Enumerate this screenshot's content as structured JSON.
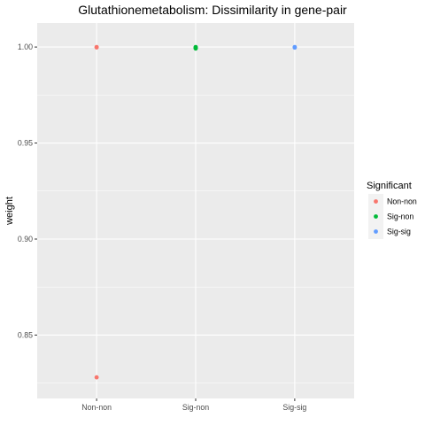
{
  "chart_data": {
    "type": "scatter",
    "title": "Glutathionemetabolism: Dissimilarity in gene-pair",
    "xlabel": "",
    "ylabel": "weight",
    "categories": [
      "Non-non",
      "Sig-non",
      "Sig-sig"
    ],
    "ylim": [
      0.817,
      1.0125
    ],
    "yticks": [
      "0.85",
      "0.90",
      "0.95",
      "1.00"
    ],
    "ytick_values": [
      0.85,
      0.9,
      0.95,
      1.0
    ],
    "grid": true,
    "legend": {
      "title": "Significant",
      "placement": "right"
    },
    "series": [
      {
        "name": "Non-non",
        "color": "#F8766D",
        "points": [
          {
            "x": "Non-non",
            "y": 1.0
          },
          {
            "x": "Non-non",
            "y": 0.9998
          },
          {
            "x": "Non-non",
            "y": 0.828
          }
        ]
      },
      {
        "name": "Sig-non",
        "color": "#00BA38",
        "points": [
          {
            "x": "Sig-non",
            "y": 1.0
          },
          {
            "x": "Sig-non",
            "y": 0.9995
          },
          {
            "x": "Sig-non",
            "y": 0.9992
          },
          {
            "x": "Sig-non",
            "y": 0.9998
          }
        ]
      },
      {
        "name": "Sig-sig",
        "color": "#619CFF",
        "points": [
          {
            "x": "Sig-sig",
            "y": 1.0
          },
          {
            "x": "Sig-sig",
            "y": 0.9997
          }
        ]
      }
    ]
  }
}
